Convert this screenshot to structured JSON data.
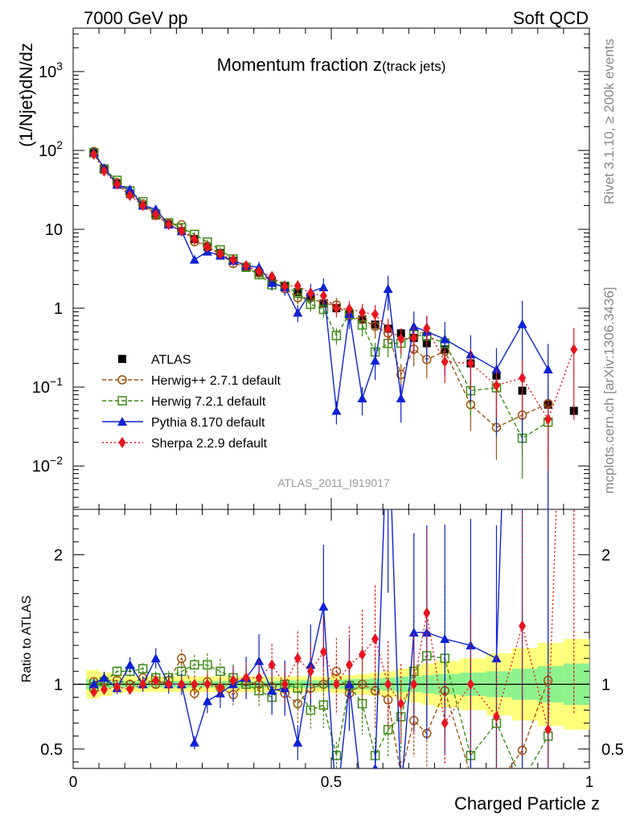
{
  "header": {
    "left": "7000 GeV pp",
    "right": "Soft QCD",
    "title_main": "Momentum fraction ",
    "title_z": "z",
    "title_sub": "(track jets)",
    "side_top": "Rivet 3.1.10, ≥ 200k events",
    "side_bottom": "mcplots.cern.ch [arXiv:1306.3436]",
    "watermark": "ATLAS_2011_I919017"
  },
  "chart_data": {
    "type": "scatter",
    "title": "Momentum fraction z(track jets)",
    "xlabel": "Charged Particle z",
    "ylabel_main": "(1/Njet)dN/dz",
    "ylabel_ratio": "Ratio to ATLAS",
    "xlim": [
      0,
      1
    ],
    "ylim_main_log10": [
      -2.55,
      3.55
    ],
    "ylim_ratio": [
      0.35,
      2.35
    ],
    "x_ticks": [
      {
        "v": 0,
        "label": "0"
      },
      {
        "v": 0.5,
        "label": "0.5"
      },
      {
        "v": 1,
        "label": "1"
      }
    ],
    "y_ticks_main": [
      {
        "v": 1000,
        "base": "10",
        "exp": "3"
      },
      {
        "v": 100,
        "base": "10",
        "exp": "2"
      },
      {
        "v": 10,
        "base": "10",
        "exp": ""
      },
      {
        "v": 1,
        "base": "1",
        "exp": ""
      },
      {
        "v": 0.1,
        "base": "10",
        "exp": "−1"
      },
      {
        "v": 0.01,
        "base": "10",
        "exp": "−2"
      }
    ],
    "y_ticks_ratio": [
      {
        "v": 2,
        "label": "2"
      },
      {
        "v": 1,
        "label": "1"
      },
      {
        "v": 0.5,
        "label": "0.5"
      }
    ],
    "x": [
      0.04,
      0.06,
      0.085,
      0.11,
      0.135,
      0.16,
      0.185,
      0.21,
      0.235,
      0.26,
      0.285,
      0.31,
      0.335,
      0.36,
      0.385,
      0.41,
      0.435,
      0.46,
      0.485,
      0.51,
      0.535,
      0.56,
      0.585,
      0.61,
      0.635,
      0.66,
      0.685,
      0.72,
      0.77,
      0.82,
      0.87,
      0.92,
      0.97
    ],
    "bands": {
      "edges": [
        0.025,
        0.05,
        0.075,
        0.1,
        0.125,
        0.15,
        0.175,
        0.2,
        0.225,
        0.25,
        0.275,
        0.3,
        0.325,
        0.35,
        0.375,
        0.4,
        0.425,
        0.45,
        0.475,
        0.5,
        0.525,
        0.55,
        0.575,
        0.6,
        0.625,
        0.65,
        0.675,
        0.7,
        0.75,
        0.8,
        0.85,
        0.9,
        0.95,
        1.0
      ],
      "stat_half_width": [
        0.04,
        0.03,
        0.03,
        0.025,
        0.025,
        0.025,
        0.025,
        0.025,
        0.025,
        0.025,
        0.025,
        0.025,
        0.025,
        0.025,
        0.025,
        0.03,
        0.03,
        0.03,
        0.03,
        0.035,
        0.04,
        0.04,
        0.045,
        0.05,
        0.06,
        0.06,
        0.07,
        0.08,
        0.09,
        0.1,
        0.12,
        0.14,
        0.16
      ],
      "total_half_width": [
        0.11,
        0.09,
        0.07,
        0.06,
        0.06,
        0.06,
        0.06,
        0.06,
        0.06,
        0.06,
        0.06,
        0.06,
        0.06,
        0.06,
        0.06,
        0.06,
        0.06,
        0.06,
        0.06,
        0.07,
        0.07,
        0.08,
        0.09,
        0.1,
        0.12,
        0.14,
        0.16,
        0.18,
        0.2,
        0.24,
        0.28,
        0.32,
        0.35
      ]
    },
    "series": [
      {
        "name": "ATLAS",
        "legend": "ATLAS",
        "color": "#000000",
        "marker": "square-filled",
        "line": "none",
        "values": [
          95,
          57,
          38,
          28,
          20,
          15,
          11.5,
          9.5,
          7.5,
          6.0,
          5.0,
          4.0,
          3.3,
          2.8,
          2.2,
          1.9,
          1.6,
          1.4,
          1.15,
          1.0,
          0.85,
          0.72,
          0.62,
          0.55,
          0.48,
          0.42,
          0.36,
          0.3,
          0.2,
          0.14,
          0.09,
          0.06,
          0.05
        ],
        "ratios": null
      },
      {
        "name": "Herwig++ 2.7.1 default",
        "legend": "Herwig++ 2.7.1 default",
        "color": "#a0520d",
        "marker": "circle-open",
        "line": "dashed",
        "ratios": [
          1.02,
          1.03,
          1.03,
          1.0,
          1.05,
          1.0,
          1.03,
          1.2,
          0.93,
          1.02,
          0.97,
          0.92,
          1.02,
          1.0,
          0.98,
          0.93,
          0.85,
          0.97,
          1.0,
          1.1,
          0.93,
          1.0,
          0.95,
          0.88,
          0.3,
          0.72,
          0.62,
          0.95,
          0.3,
          0.22,
          0.49,
          1.03,
          null
        ]
      },
      {
        "name": "Herwig 7.2.1 default",
        "legend": "Herwig 7.2.1 default",
        "color": "#3c8c14",
        "marker": "square-open",
        "line": "dashed",
        "ratios": [
          0.98,
          1.02,
          1.1,
          1.1,
          1.12,
          1.05,
          1.05,
          1.1,
          1.15,
          1.15,
          1.1,
          1.05,
          1.0,
          0.95,
          0.9,
          1.0,
          0.97,
          0.8,
          0.84,
          0.45,
          0.99,
          0.85,
          0.45,
          0.65,
          0.75,
          1.1,
          1.22,
          1.2,
          0.45,
          0.7,
          0.25,
          0.6,
          null
        ]
      },
      {
        "name": "Pythia 8.170 default",
        "legend": "Pythia 8.170 default",
        "color": "#0b22d4",
        "marker": "triangle-filled",
        "line": "solid",
        "ratios": [
          1.0,
          1.05,
          0.97,
          1.15,
          1.0,
          1.2,
          1.0,
          1.0,
          0.55,
          0.87,
          0.93,
          1.0,
          1.05,
          1.18,
          0.95,
          0.97,
          0.55,
          1.15,
          1.6,
          0.05,
          1.0,
          0.1,
          0.35,
          3.2,
          0.15,
          1.4,
          1.4,
          1.35,
          1.3,
          1.2,
          7.0,
          2.8,
          null
        ]
      },
      {
        "name": "Sherpa 2.2.9 default",
        "legend": "Sherpa 2.2.9 default",
        "color": "#e8141e",
        "marker": "diamond-filled",
        "line": "dotted",
        "ratios": [
          0.94,
          0.96,
          0.98,
          0.96,
          1.0,
          1.03,
          1.0,
          1.0,
          1.0,
          1.0,
          0.97,
          1.03,
          1.05,
          1.05,
          1.15,
          1.0,
          1.2,
          1.1,
          1.25,
          1.0,
          1.15,
          1.23,
          1.35,
          1.0,
          0.85,
          1.0,
          1.55,
          0.7,
          1.0,
          0.75,
          1.45,
          0.65,
          6.0
        ]
      }
    ]
  }
}
